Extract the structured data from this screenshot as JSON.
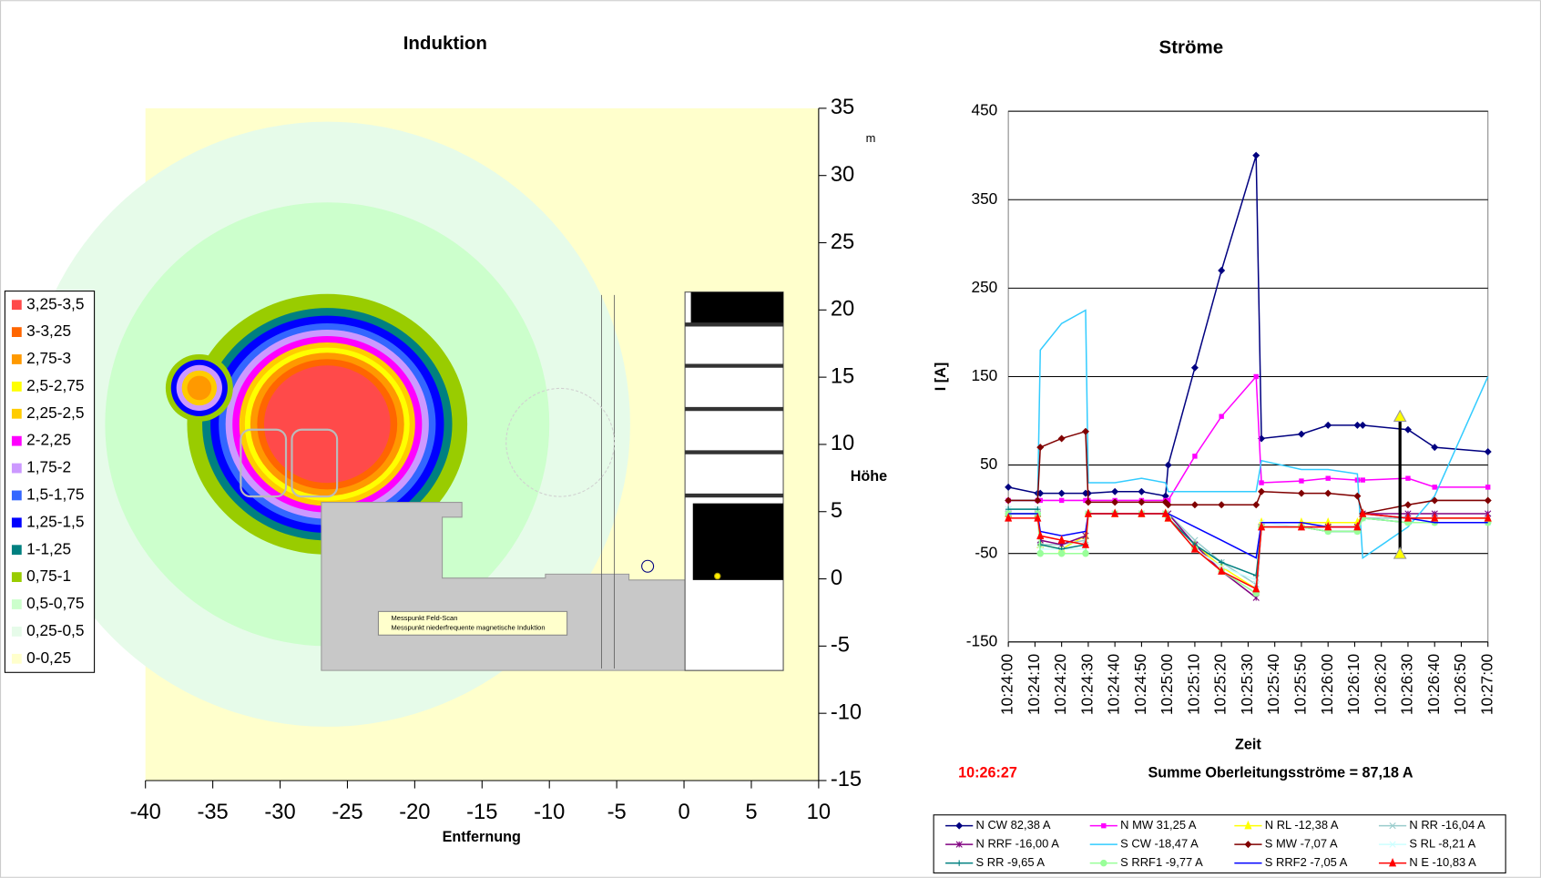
{
  "chart_data": [
    {
      "type": "contour",
      "title": "Induktion",
      "x_label": "Entfernung",
      "y_label": "Höhe",
      "y_unit": "m",
      "xlim": [
        -40,
        10
      ],
      "xticks": [
        -40,
        -35,
        -30,
        -25,
        -20,
        -15,
        -10,
        -5,
        0,
        5,
        10
      ],
      "ylim": [
        -15,
        35
      ],
      "yticks": [
        -15,
        -10,
        -5,
        0,
        5,
        10,
        15,
        20,
        25,
        30,
        35
      ],
      "levels": [
        {
          "label": "3,25-3,5",
          "color": "#ff4a4a"
        },
        {
          "label": "3-3,25",
          "color": "#ff6600"
        },
        {
          "label": "2,75-3",
          "color": "#ff9900"
        },
        {
          "label": "2,5-2,75",
          "color": "#ffff00"
        },
        {
          "label": "2,25-2,5",
          "color": "#ffcc00"
        },
        {
          "label": "2-2,25",
          "color": "#ff00ff"
        },
        {
          "label": "1,75-2",
          "color": "#cc99ff"
        },
        {
          "label": "1,5-1,75",
          "color": "#3366ff"
        },
        {
          "label": "1,25-1,5",
          "color": "#0000ff"
        },
        {
          "label": "1-1,25",
          "color": "#008080"
        },
        {
          "label": "0,75-1",
          "color": "#99cc00"
        },
        {
          "label": "0,5-0,75",
          "color": "#ccffcc"
        },
        {
          "label": "0,25-0,5",
          "color": "#e6fbe9"
        },
        {
          "label": "0-0,25",
          "color": "#ffffcc"
        }
      ],
      "annotations": [
        "Messpunkt Feld-Scan",
        "Messpunkt niederfrequente magnetische Induktion"
      ]
    },
    {
      "type": "line",
      "title": "Ströme",
      "x_label": "Zeit",
      "y_label": "I [A]",
      "ylim": [
        -150,
        450
      ],
      "yticks": [
        -150,
        -50,
        50,
        150,
        250,
        350,
        450
      ],
      "grid": true,
      "xlim": [
        "10:24:00",
        "10:27:00"
      ],
      "xticks": [
        "10:24:00",
        "10:24:10",
        "10:24:20",
        "10:24:30",
        "10:24:40",
        "10:24:50",
        "10:25:00",
        "10:25:10",
        "10:25:20",
        "10:25:30",
        "10:25:40",
        "10:25:50",
        "10:26:00",
        "10:26:10",
        "10:26:20",
        "10:26:30",
        "10:26:40",
        "10:26:50",
        "10:27:00"
      ],
      "x": [
        "10:24:00",
        "10:24:11",
        "10:24:12",
        "10:24:20",
        "10:24:29",
        "10:24:30",
        "10:24:40",
        "10:24:50",
        "10:24:59",
        "10:25:00",
        "10:25:10",
        "10:25:20",
        "10:25:33",
        "10:25:35",
        "10:25:50",
        "10:26:00",
        "10:26:11",
        "10:26:13",
        "10:26:30",
        "10:26:40",
        "10:27:00"
      ],
      "series": [
        {
          "name": "N CW 82,38 A",
          "color": "#000080",
          "marker": "diamond",
          "values": [
            25,
            18,
            18,
            18,
            18,
            18,
            20,
            20,
            15,
            50,
            160,
            270,
            400,
            80,
            85,
            95,
            95,
            95,
            90,
            70,
            65
          ]
        },
        {
          "name": "N MW 31,25 A",
          "color": "#ff00ff",
          "marker": "square",
          "values": [
            10,
            10,
            10,
            10,
            10,
            10,
            10,
            10,
            10,
            10,
            60,
            105,
            150,
            30,
            32,
            35,
            33,
            33,
            35,
            25,
            25
          ]
        },
        {
          "name": "N RL -12,38 A",
          "color": "#ffff00",
          "marker": "triangle",
          "values": [
            -5,
            -5,
            -40,
            -45,
            -30,
            -5,
            -5,
            -5,
            -5,
            -10,
            -40,
            -65,
            -90,
            -15,
            -15,
            -15,
            -15,
            -5,
            -10,
            -10,
            -10
          ]
        },
        {
          "name": "N RR -16,04 A",
          "color": "#99cccc",
          "marker": "x",
          "values": [
            0,
            0,
            -40,
            -40,
            -35,
            -5,
            -5,
            -5,
            -5,
            -5,
            -35,
            -60,
            -85,
            -20,
            -20,
            -20,
            -20,
            -10,
            -10,
            -10,
            -10
          ]
        },
        {
          "name": "N RRF -16,00 A",
          "color": "#800080",
          "marker": "star",
          "values": [
            -5,
            -5,
            -35,
            -40,
            -30,
            -5,
            -5,
            -5,
            -5,
            -5,
            -40,
            -70,
            -100,
            -20,
            -20,
            -20,
            -20,
            -5,
            -5,
            -5,
            -5
          ]
        },
        {
          "name": "S CW -18,47 A",
          "color": "#33ccff",
          "marker": "none",
          "values": [
            10,
            10,
            180,
            210,
            225,
            30,
            30,
            35,
            30,
            20,
            20,
            20,
            20,
            55,
            45,
            45,
            40,
            -55,
            -20,
            15,
            150
          ]
        },
        {
          "name": "S MW -7,07 A",
          "color": "#800000",
          "marker": "diamond",
          "values": [
            10,
            10,
            70,
            80,
            88,
            8,
            8,
            8,
            8,
            5,
            5,
            5,
            5,
            20,
            18,
            18,
            15,
            -5,
            5,
            10,
            10
          ]
        },
        {
          "name": "S RL -8,21 A",
          "color": "#ccffff",
          "marker": "x",
          "values": [
            0,
            0,
            -45,
            -45,
            -45,
            -5,
            -5,
            -5,
            -5,
            -10,
            -45,
            -65,
            -80,
            -15,
            -20,
            -25,
            -25,
            -10,
            -15,
            -15,
            -15
          ]
        },
        {
          "name": "S RR -9,65 A",
          "color": "#008080",
          "marker": "plus",
          "values": [
            0,
            0,
            -40,
            -45,
            -40,
            -5,
            -5,
            -5,
            -5,
            -10,
            -40,
            -60,
            -75,
            -20,
            -20,
            -25,
            -25,
            -10,
            -15,
            -15,
            -15
          ]
        },
        {
          "name": "S RRF1 -9,77 A",
          "color": "#99ff99",
          "marker": "circle",
          "values": [
            -5,
            -5,
            -50,
            -50,
            -50,
            -5,
            -5,
            -5,
            -5,
            -10,
            -45,
            -70,
            -95,
            -20,
            -20,
            -25,
            -25,
            -10,
            -15,
            -15,
            -15
          ]
        },
        {
          "name": "S RRF2 -7,05 A",
          "color": "#0000ff",
          "marker": "none",
          "values": [
            -5,
            -5,
            -25,
            -30,
            -25,
            -5,
            -5,
            -5,
            -5,
            -5,
            -20,
            -35,
            -55,
            -15,
            -15,
            -20,
            -20,
            -5,
            -10,
            -15,
            -15
          ]
        },
        {
          "name": "N E -10,83 A",
          "color": "#ff0000",
          "marker": "triangle",
          "values": [
            -10,
            -10,
            -30,
            -35,
            -40,
            -5,
            -5,
            -5,
            -5,
            -10,
            -45,
            -70,
            -90,
            -20,
            -20,
            -20,
            -20,
            -5,
            -10,
            -10,
            -10
          ]
        }
      ],
      "cursor": {
        "label": "10:26:27",
        "range": [
          -50,
          105
        ]
      },
      "annotation": "Summe Oberleitungsströme = 87,18 A"
    }
  ]
}
